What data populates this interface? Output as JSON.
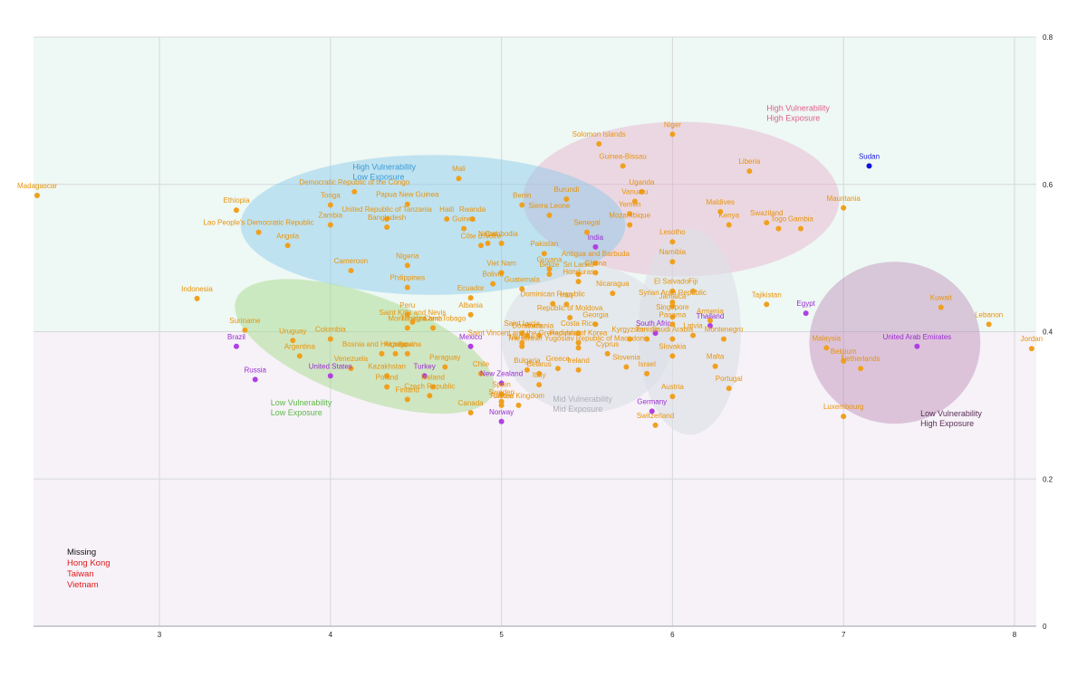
{
  "chart_data": {
    "type": "scatter",
    "xlim": [
      2.2,
      8.1
    ],
    "ylim": [
      0,
      0.8
    ],
    "x_ticks": [
      "3",
      "4",
      "5",
      "6",
      "7",
      "8"
    ],
    "y_ticks": [
      "0",
      "0.2",
      "0.4",
      "0.6",
      "0.8"
    ],
    "grid": true,
    "colors": {
      "orange": "#f0a01e",
      "purple": "#b040e0",
      "blue": "#1010e0",
      "label_orange": "#e8930a",
      "label_purple": "#9a2bd0",
      "label_blue": "#1a1ae0"
    },
    "background_bands": [
      {
        "y0": 0.4,
        "y1": 0.8,
        "color": "#eef8f4"
      },
      {
        "y0": 0.0,
        "y1": 0.4,
        "color": "#f6f2f8"
      }
    ],
    "zones": [
      {
        "label_lines": [
          "High Vulnerability",
          "High Exposure"
        ],
        "color": "#e8a0c2",
        "opacity": 0.38,
        "cx": 6.05,
        "cy": 0.58,
        "rx": 1.85,
        "ry": 0.105,
        "rot": 0,
        "label_x": 6.55,
        "label_y": 0.7,
        "label_color": "#e0608f"
      },
      {
        "label_lines": [
          "High Vulnerability",
          "Low Exposure"
        ],
        "color": "#86c7ec",
        "opacity": 0.45,
        "cx": 4.6,
        "cy": 0.545,
        "rx": 2.25,
        "ry": 0.095,
        "rot": 0,
        "label_x": 4.13,
        "label_y": 0.62,
        "label_color": "#3a9ad8"
      },
      {
        "label_lines": [
          "Low Vulnerability",
          "Low Exposure"
        ],
        "color": "#a8d98c",
        "opacity": 0.5,
        "cx": 4.2,
        "cy": 0.38,
        "rx": 1.6,
        "ry": 0.07,
        "rot": 20,
        "label_x": 3.65,
        "label_y": 0.3,
        "label_color": "#60b848"
      },
      {
        "label_lines": [
          "Mid Vulnerability",
          "Mid Exposure"
        ],
        "color": "#dcdfe6",
        "opacity": 0.6,
        "cx": 5.5,
        "cy": 0.39,
        "rx": 1.0,
        "ry": 0.1,
        "rot": 0,
        "label_x": 5.3,
        "label_y": 0.305,
        "label_color": "#b0b0b8"
      },
      {
        "label_lines": [
          "Mid Vulnerability",
          "Mid Exposure"
        ],
        "color": "#dcdfe6",
        "opacity": 0.6,
        "cx": 6.1,
        "cy": 0.4,
        "rx": 0.6,
        "ry": 0.14,
        "rot": 0,
        "label_x": 5.3,
        "label_y": 0.305,
        "label_color": "#b0b0b8"
      },
      {
        "label_lines": [
          "Low Vulnerability",
          "High Exposure"
        ],
        "color": "#b782b0",
        "opacity": 0.42,
        "cx": 7.3,
        "cy": 0.385,
        "rx": 1.0,
        "ry": 0.11,
        "rot": 0,
        "label_x": 7.45,
        "label_y": 0.285,
        "label_color": "#5a2e55"
      }
    ],
    "missing": {
      "title": "Missing",
      "items": [
        "Hong Kong",
        "Taiwan",
        "Vietnam"
      ]
    },
    "points": [
      {
        "label": "Madagascar",
        "x": 2.22,
        "y": 0.585,
        "c": "orange"
      },
      {
        "label": "Ethiopia",
        "x": 3.45,
        "y": 0.565,
        "c": "orange"
      },
      {
        "label": "Lao People's Democratic Republic",
        "x": 3.58,
        "y": 0.535,
        "c": "orange"
      },
      {
        "label": "Angola",
        "x": 3.75,
        "y": 0.517,
        "c": "orange"
      },
      {
        "label": "Indonesia",
        "x": 3.22,
        "y": 0.445,
        "c": "orange"
      },
      {
        "label": "Suriname",
        "x": 3.5,
        "y": 0.402,
        "c": "orange"
      },
      {
        "label": "Brazil",
        "x": 3.45,
        "y": 0.38,
        "c": "purple"
      },
      {
        "label": "Uruguay",
        "x": 3.78,
        "y": 0.388,
        "c": "orange"
      },
      {
        "label": "Argentina",
        "x": 3.82,
        "y": 0.367,
        "c": "orange"
      },
      {
        "label": "Russia",
        "x": 3.56,
        "y": 0.335,
        "c": "purple"
      },
      {
        "label": "Democratic Republic of the Congo",
        "x": 4.14,
        "y": 0.59,
        "c": "orange"
      },
      {
        "label": "Tonga",
        "x": 4.0,
        "y": 0.572,
        "c": "orange"
      },
      {
        "label": "Zambia",
        "x": 4.0,
        "y": 0.545,
        "c": "orange"
      },
      {
        "label": "Papua New Guinea",
        "x": 4.45,
        "y": 0.573,
        "c": "orange"
      },
      {
        "label": "United Republic of Tanzania",
        "x": 4.33,
        "y": 0.553,
        "c": "orange"
      },
      {
        "label": "Bangladesh",
        "x": 4.33,
        "y": 0.542,
        "c": "orange"
      },
      {
        "label": "Cameroon",
        "x": 4.12,
        "y": 0.483,
        "c": "orange"
      },
      {
        "label": "Nigeria",
        "x": 4.45,
        "y": 0.49,
        "c": "orange"
      },
      {
        "label": "Philippines",
        "x": 4.45,
        "y": 0.46,
        "c": "orange"
      },
      {
        "label": "Colombia",
        "x": 4.0,
        "y": 0.39,
        "c": "orange"
      },
      {
        "label": "Venezuela",
        "x": 4.12,
        "y": 0.35,
        "c": "orange"
      },
      {
        "label": "United States",
        "x": 4.0,
        "y": 0.34,
        "c": "purple"
      },
      {
        "label": "Bosnia and Herzegovina",
        "x": 4.3,
        "y": 0.37,
        "c": "orange"
      },
      {
        "label": "Algeria",
        "x": 4.38,
        "y": 0.37,
        "c": "orange"
      },
      {
        "label": "Japan",
        "x": 4.45,
        "y": 0.37,
        "c": "orange"
      },
      {
        "label": "Kazakhstan",
        "x": 4.33,
        "y": 0.34,
        "c": "orange"
      },
      {
        "label": "Poland",
        "x": 4.33,
        "y": 0.325,
        "c": "orange"
      },
      {
        "label": "Finland",
        "x": 4.45,
        "y": 0.308,
        "c": "orange"
      },
      {
        "label": "Peru",
        "x": 4.45,
        "y": 0.423,
        "c": "orange"
      },
      {
        "label": "Saint Kitts and Nevis",
        "x": 4.48,
        "y": 0.413,
        "c": "orange"
      },
      {
        "label": "Montenegro",
        "x": 4.45,
        "y": 0.405,
        "c": "orange"
      },
      {
        "label": "Trinidad and Tobago",
        "x": 4.6,
        "y": 0.405,
        "c": "orange"
      },
      {
        "label": "China",
        "x": 4.6,
        "y": 0.405,
        "c": "orange"
      },
      {
        "label": "Turkey",
        "x": 4.55,
        "y": 0.34,
        "c": "purple"
      },
      {
        "label": "Paraguay",
        "x": 4.67,
        "y": 0.352,
        "c": "orange"
      },
      {
        "label": "Iceland",
        "x": 4.6,
        "y": 0.325,
        "c": "orange"
      },
      {
        "label": "Czech Republic",
        "x": 4.58,
        "y": 0.313,
        "c": "orange"
      },
      {
        "label": "Mali",
        "x": 4.75,
        "y": 0.608,
        "c": "orange"
      },
      {
        "label": "Haiti",
        "x": 4.68,
        "y": 0.553,
        "c": "orange"
      },
      {
        "label": "Rwanda",
        "x": 4.83,
        "y": 0.553,
        "c": "orange"
      },
      {
        "label": "Guinea",
        "x": 4.78,
        "y": 0.54,
        "c": "orange"
      },
      {
        "label": "Benin",
        "x": 5.12,
        "y": 0.572,
        "c": "orange"
      },
      {
        "label": "Sierra Leone",
        "x": 5.28,
        "y": 0.558,
        "c": "orange"
      },
      {
        "label": "Côte d'Ivoire",
        "x": 4.88,
        "y": 0.517,
        "c": "orange"
      },
      {
        "label": "Nepal",
        "x": 4.92,
        "y": 0.52,
        "c": "orange"
      },
      {
        "label": "Cambodia",
        "x": 5.0,
        "y": 0.52,
        "c": "orange"
      },
      {
        "label": "Viet Nam",
        "x": 5.0,
        "y": 0.48,
        "c": "orange"
      },
      {
        "label": "Bolivia",
        "x": 4.95,
        "y": 0.465,
        "c": "orange"
      },
      {
        "label": "Guatemala",
        "x": 5.12,
        "y": 0.458,
        "c": "orange"
      },
      {
        "label": "Ecuador",
        "x": 4.82,
        "y": 0.446,
        "c": "orange"
      },
      {
        "label": "Albania",
        "x": 4.82,
        "y": 0.423,
        "c": "orange"
      },
      {
        "label": "Mexico",
        "x": 4.82,
        "y": 0.38,
        "c": "purple"
      },
      {
        "label": "Chile",
        "x": 4.88,
        "y": 0.343,
        "c": "orange"
      },
      {
        "label": "New Zealand",
        "x": 5.0,
        "y": 0.33,
        "c": "purple"
      },
      {
        "label": "Spain",
        "x": 5.0,
        "y": 0.315,
        "c": "orange"
      },
      {
        "label": "Sweden",
        "x": 5.0,
        "y": 0.305,
        "c": "orange"
      },
      {
        "label": "France",
        "x": 5.0,
        "y": 0.3,
        "c": "orange"
      },
      {
        "label": "Canada",
        "x": 4.82,
        "y": 0.29,
        "c": "orange"
      },
      {
        "label": "Norway",
        "x": 5.0,
        "y": 0.278,
        "c": "purple"
      },
      {
        "label": "Burundi",
        "x": 5.38,
        "y": 0.58,
        "c": "orange"
      },
      {
        "label": "Solomon Islands",
        "x": 5.57,
        "y": 0.655,
        "c": "orange"
      },
      {
        "label": "Niger",
        "x": 6.0,
        "y": 0.668,
        "c": "orange"
      },
      {
        "label": "Guinea-Bissau",
        "x": 5.71,
        "y": 0.625,
        "c": "orange"
      },
      {
        "label": "Uganda",
        "x": 5.82,
        "y": 0.59,
        "c": "orange"
      },
      {
        "label": "Vanuatu",
        "x": 5.78,
        "y": 0.577,
        "c": "orange"
      },
      {
        "label": "Yemen",
        "x": 5.75,
        "y": 0.56,
        "c": "orange"
      },
      {
        "label": "Mozambique",
        "x": 5.75,
        "y": 0.545,
        "c": "orange"
      },
      {
        "label": "Senegal",
        "x": 5.5,
        "y": 0.535,
        "c": "orange"
      },
      {
        "label": "Pakistan",
        "x": 5.25,
        "y": 0.506,
        "c": "orange"
      },
      {
        "label": "India",
        "x": 5.55,
        "y": 0.515,
        "c": "purple"
      },
      {
        "label": "Guyana",
        "x": 5.28,
        "y": 0.485,
        "c": "orange"
      },
      {
        "label": "Belize",
        "x": 5.28,
        "y": 0.478,
        "c": "orange"
      },
      {
        "label": "Sri Lanka",
        "x": 5.45,
        "y": 0.478,
        "c": "orange"
      },
      {
        "label": "Antigua and Barbuda",
        "x": 5.55,
        "y": 0.493,
        "c": "orange"
      },
      {
        "label": "Ghana",
        "x": 5.55,
        "y": 0.48,
        "c": "orange"
      },
      {
        "label": "Honduras",
        "x": 5.45,
        "y": 0.468,
        "c": "orange"
      },
      {
        "label": "Nicaragua",
        "x": 5.65,
        "y": 0.452,
        "c": "orange"
      },
      {
        "label": "Dominican Republic",
        "x": 5.3,
        "y": 0.438,
        "c": "orange"
      },
      {
        "label": "Iraq",
        "x": 5.38,
        "y": 0.437,
        "c": "orange"
      },
      {
        "label": "Republic of Moldova",
        "x": 5.4,
        "y": 0.419,
        "c": "orange"
      },
      {
        "label": "Georgia",
        "x": 5.55,
        "y": 0.41,
        "c": "orange"
      },
      {
        "label": "Saint Lucia",
        "x": 5.12,
        "y": 0.398,
        "c": "orange"
      },
      {
        "label": "Dominica",
        "x": 5.15,
        "y": 0.395,
        "c": "orange"
      },
      {
        "label": "Romania",
        "x": 5.22,
        "y": 0.395,
        "c": "orange"
      },
      {
        "label": "Saint Vincent and the Grenadines",
        "x": 5.12,
        "y": 0.385,
        "c": "orange"
      },
      {
        "label": "Ukraine",
        "x": 5.12,
        "y": 0.38,
        "c": "orange"
      },
      {
        "label": "Costa Rica",
        "x": 5.45,
        "y": 0.398,
        "c": "orange"
      },
      {
        "label": "Republic of Korea",
        "x": 5.45,
        "y": 0.385,
        "c": "orange"
      },
      {
        "label": "The former Yugoslav Republic of Macedonia",
        "x": 5.45,
        "y": 0.378,
        "c": "orange"
      },
      {
        "label": "Bulgaria",
        "x": 5.15,
        "y": 0.348,
        "c": "orange"
      },
      {
        "label": "Belarus",
        "x": 5.22,
        "y": 0.343,
        "c": "orange"
      },
      {
        "label": "Greece",
        "x": 5.33,
        "y": 0.35,
        "c": "orange"
      },
      {
        "label": "Ireland",
        "x": 5.45,
        "y": 0.348,
        "c": "orange"
      },
      {
        "label": "Cyprus",
        "x": 5.62,
        "y": 0.37,
        "c": "orange"
      },
      {
        "label": "Italy",
        "x": 5.22,
        "y": 0.328,
        "c": "orange"
      },
      {
        "label": "United Kingdom",
        "x": 5.1,
        "y": 0.3,
        "c": "orange"
      },
      {
        "label": "Slovenia",
        "x": 5.73,
        "y": 0.352,
        "c": "orange"
      },
      {
        "label": "Israel",
        "x": 5.85,
        "y": 0.343,
        "c": "orange"
      },
      {
        "label": "Switzerland",
        "x": 5.9,
        "y": 0.273,
        "c": "orange"
      },
      {
        "label": "Germany",
        "x": 5.88,
        "y": 0.292,
        "c": "purple"
      },
      {
        "label": "Kyrgyzstan",
        "x": 5.75,
        "y": 0.39,
        "c": "orange"
      },
      {
        "label": "Tunisia",
        "x": 5.85,
        "y": 0.39,
        "c": "orange"
      },
      {
        "label": "South Africa",
        "x": 5.9,
        "y": 0.398,
        "c": "purple"
      },
      {
        "label": "Saudi Arabia",
        "x": 6.0,
        "y": 0.39,
        "c": "orange"
      },
      {
        "label": "Slovakia",
        "x": 6.0,
        "y": 0.367,
        "c": "orange"
      },
      {
        "label": "Austria",
        "x": 6.0,
        "y": 0.312,
        "c": "orange"
      },
      {
        "label": "Lesotho",
        "x": 6.0,
        "y": 0.522,
        "c": "orange"
      },
      {
        "label": "Namibia",
        "x": 6.0,
        "y": 0.495,
        "c": "orange"
      },
      {
        "label": "El Salvador",
        "x": 6.0,
        "y": 0.455,
        "c": "orange"
      },
      {
        "label": "Syrian Arab Republic",
        "x": 6.0,
        "y": 0.44,
        "c": "orange"
      },
      {
        "label": "Fiji",
        "x": 6.12,
        "y": 0.455,
        "c": "orange"
      },
      {
        "label": "Jamaica",
        "x": 6.0,
        "y": 0.435,
        "c": "orange"
      },
      {
        "label": "Singapore",
        "x": 6.0,
        "y": 0.42,
        "c": "orange"
      },
      {
        "label": "Panama",
        "x": 6.0,
        "y": 0.41,
        "c": "orange"
      },
      {
        "label": "Armenia",
        "x": 6.22,
        "y": 0.415,
        "c": "orange"
      },
      {
        "label": "Thailand",
        "x": 6.22,
        "y": 0.408,
        "c": "purple"
      },
      {
        "label": "Latvia",
        "x": 6.12,
        "y": 0.395,
        "c": "orange"
      },
      {
        "label": "Montenegro",
        "x": 6.3,
        "y": 0.39,
        "c": "orange"
      },
      {
        "label": "Malta",
        "x": 6.25,
        "y": 0.353,
        "c": "orange"
      },
      {
        "label": "Portugal",
        "x": 6.33,
        "y": 0.323,
        "c": "orange"
      },
      {
        "label": "Liberia",
        "x": 6.45,
        "y": 0.618,
        "c": "orange"
      },
      {
        "label": "Maldives",
        "x": 6.28,
        "y": 0.563,
        "c": "orange"
      },
      {
        "label": "Kenya",
        "x": 6.33,
        "y": 0.545,
        "c": "orange"
      },
      {
        "label": "Swaziland",
        "x": 6.55,
        "y": 0.548,
        "c": "orange"
      },
      {
        "label": "Togo",
        "x": 6.62,
        "y": 0.54,
        "c": "orange"
      },
      {
        "label": "Gambia",
        "x": 6.75,
        "y": 0.54,
        "c": "orange"
      },
      {
        "label": "Mauritania",
        "x": 7.0,
        "y": 0.568,
        "c": "orange"
      },
      {
        "label": "Sudan",
        "x": 7.15,
        "y": 0.625,
        "c": "blue"
      },
      {
        "label": "Tajikistan",
        "x": 6.55,
        "y": 0.437,
        "c": "orange"
      },
      {
        "label": "Egypt",
        "x": 6.78,
        "y": 0.425,
        "c": "purple"
      },
      {
        "label": "Malaysia",
        "x": 6.9,
        "y": 0.378,
        "c": "orange"
      },
      {
        "label": "Belgium",
        "x": 7.0,
        "y": 0.36,
        "c": "orange"
      },
      {
        "label": "Netherlands",
        "x": 7.1,
        "y": 0.35,
        "c": "orange"
      },
      {
        "label": "United Arab Emirates",
        "x": 7.43,
        "y": 0.38,
        "c": "purple"
      },
      {
        "label": "Luxembourg",
        "x": 7.0,
        "y": 0.285,
        "c": "orange"
      },
      {
        "label": "Kuwait",
        "x": 7.57,
        "y": 0.433,
        "c": "orange"
      },
      {
        "label": "Lebanon",
        "x": 7.85,
        "y": 0.41,
        "c": "orange"
      },
      {
        "label": "Jordan",
        "x": 8.1,
        "y": 0.377,
        "c": "orange"
      }
    ]
  }
}
